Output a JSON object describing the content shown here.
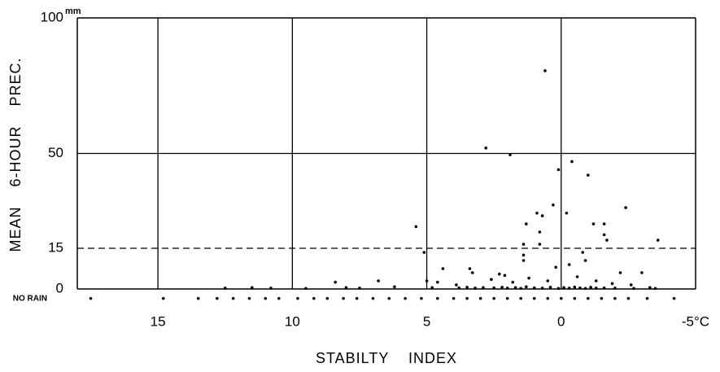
{
  "chart_data": {
    "type": "scatter",
    "x_label": "STABILTY INDEX",
    "y_label": "MEAN 6-HOUR PREC.",
    "y_unit": "mm",
    "xlim": [
      18,
      -5
    ],
    "xticks": [
      15,
      10,
      5,
      0,
      {
        "value": -5,
        "label": "-5°C"
      }
    ],
    "ylim": [
      -4,
      100
    ],
    "yticks": [
      {
        "value": -3.5,
        "label": "NO RAIN"
      },
      0,
      15,
      50,
      100
    ],
    "reference_line": 15,
    "grid": true,
    "color": "#000000",
    "x": [
      0.6,
      2.8,
      1.9,
      0.1,
      -0.4,
      -1.0,
      0.3,
      0.9,
      0.7,
      -0.2,
      -2.4,
      5.4,
      1.3,
      0.8,
      -1.2,
      -1.6,
      -1.6,
      -1.7,
      -3.6,
      5.1,
      1.4,
      1.4,
      1.4,
      0.8,
      -0.8,
      -0.9,
      0.2,
      -0.3,
      3.3,
      3.4,
      4.4,
      2.3,
      2.1,
      -2.2,
      -3.0,
      8.4,
      6.8,
      5.0,
      4.6,
      3.9,
      2.6,
      1.8,
      1.2,
      0.5,
      -0.6,
      -1.3,
      -1.9,
      -2.6,
      -3.3,
      12.5,
      11.5,
      10.8,
      9.5,
      8.0,
      7.5,
      6.2,
      4.8,
      3.8,
      3.5,
      3.2,
      2.9,
      2.5,
      2.2,
      2.0,
      1.7,
      1.5,
      1.3,
      1.0,
      0.7,
      0.4,
      0.1,
      -0.1,
      -0.3,
      -0.5,
      -0.7,
      -0.9,
      -1.1,
      -1.3,
      -1.6,
      -2.0,
      -2.7,
      -3.5,
      17.5,
      14.8,
      13.5,
      12.8,
      12.2,
      11.6,
      11.0,
      10.5,
      9.8,
      9.2,
      8.7,
      8.1,
      7.6,
      7.0,
      6.4,
      5.8,
      5.2,
      4.6,
      4.0,
      3.5,
      3.0,
      2.5,
      2.0,
      1.5,
      1.0,
      0.5,
      0.0,
      -0.5,
      -1.0,
      -1.5,
      -2.0,
      -2.5,
      -3.2,
      -4.2
    ],
    "values": [
      80.5,
      52,
      49.5,
      44,
      47,
      42,
      31,
      28,
      27,
      28,
      30,
      23,
      24,
      21,
      24,
      24,
      20,
      18,
      18,
      13.5,
      16.5,
      12.5,
      10.5,
      16.5,
      13.5,
      10.5,
      8,
      9,
      6,
      7.5,
      7.5,
      5.5,
      5,
      6,
      6,
      2.5,
      3,
      3,
      2.5,
      1.5,
      3.5,
      2.5,
      4,
      3,
      4.5,
      3,
      2,
      1.5,
      0.5,
      0.3,
      0.5,
      0.3,
      0.2,
      0.5,
      0.3,
      0.8,
      0.5,
      0.4,
      0.6,
      0.3,
      0.5,
      0.4,
      0.6,
      0.3,
      0.5,
      0.2,
      0.8,
      0.4,
      0.3,
      0.6,
      0.2,
      0.5,
      0.3,
      0.7,
      0.4,
      0.2,
      0.6,
      0.3,
      0.4,
      0.3,
      0.2,
      0.2,
      -3.5,
      -3.5,
      -3.5,
      -3.5,
      -3.5,
      -3.5,
      -3.5,
      -3.5,
      -3.5,
      -3.5,
      -3.5,
      -3.5,
      -3.5,
      -3.5,
      -3.5,
      -3.5,
      -3.5,
      -3.5,
      -3.5,
      -3.5,
      -3.5,
      -3.5,
      -3.5,
      -3.5,
      -3.5,
      -3.5,
      -3.5,
      -3.5,
      -3.5,
      -3.5,
      -3.5,
      -3.5,
      -3.5,
      -3.5
    ]
  }
}
